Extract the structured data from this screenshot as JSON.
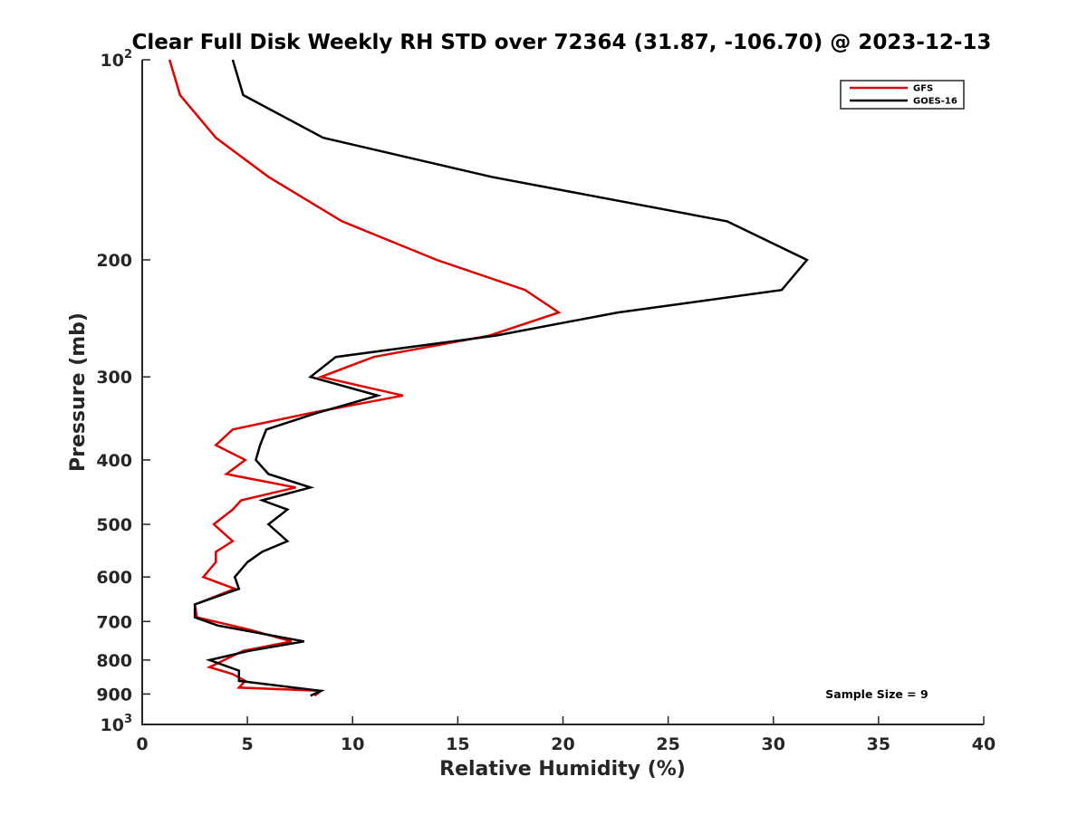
{
  "chart_data": {
    "type": "line",
    "title": "Clear Full Disk Weekly RH STD over 72364 (31.87, -106.70) @ 2023-12-13",
    "xlabel": "Relative Humidity (%)",
    "ylabel": "Pressure (mb)",
    "xlim": [
      0,
      40
    ],
    "ylim": [
      100,
      1000
    ],
    "y_scale": "log",
    "y_reversed": true,
    "x_ticks": [
      0,
      5,
      10,
      15,
      20,
      25,
      30,
      35,
      40
    ],
    "x_tick_labels": [
      "0",
      "5",
      "10",
      "15",
      "20",
      "25",
      "30",
      "35",
      "40"
    ],
    "y_ticks": [
      100,
      200,
      300,
      400,
      500,
      600,
      700,
      800,
      900,
      1000
    ],
    "y_tick_labels": [
      {
        "base": "10",
        "exp": "2"
      },
      {
        "base": "200",
        "exp": ""
      },
      {
        "base": "300",
        "exp": ""
      },
      {
        "base": "400",
        "exp": ""
      },
      {
        "base": "500",
        "exp": ""
      },
      {
        "base": "600",
        "exp": ""
      },
      {
        "base": "700",
        "exp": ""
      },
      {
        "base": "800",
        "exp": ""
      },
      {
        "base": "900",
        "exp": ""
      },
      {
        "base": "10",
        "exp": "3"
      }
    ],
    "grid": false,
    "legend_position": "top-right",
    "annotation": "Sample Size = 9",
    "series": [
      {
        "name": "GFS",
        "color": "#e00000",
        "points": [
          [
            1.3,
            100
          ],
          [
            1.8,
            113
          ],
          [
            3.5,
            131
          ],
          [
            6.0,
            150
          ],
          [
            9.5,
            175
          ],
          [
            14.0,
            200
          ],
          [
            18.2,
            222
          ],
          [
            19.8,
            240
          ],
          [
            16.5,
            260
          ],
          [
            11.0,
            280
          ],
          [
            8.5,
            300
          ],
          [
            12.4,
            320
          ],
          [
            8.0,
            340
          ],
          [
            4.3,
            360
          ],
          [
            3.5,
            380
          ],
          [
            4.9,
            400
          ],
          [
            4.0,
            420
          ],
          [
            7.3,
            440
          ],
          [
            4.7,
            460
          ],
          [
            4.3,
            475
          ],
          [
            3.4,
            500
          ],
          [
            4.3,
            530
          ],
          [
            3.5,
            550
          ],
          [
            3.5,
            570
          ],
          [
            2.9,
            600
          ],
          [
            4.4,
            625
          ],
          [
            2.5,
            660
          ],
          [
            2.6,
            690
          ],
          [
            5.1,
            720
          ],
          [
            7.1,
            750
          ],
          [
            4.8,
            775
          ],
          [
            3.9,
            800
          ],
          [
            3.2,
            820
          ],
          [
            4.3,
            840
          ],
          [
            4.9,
            860
          ],
          [
            4.6,
            880
          ],
          [
            8.5,
            890
          ],
          [
            8.2,
            905
          ]
        ]
      },
      {
        "name": "GOES-16",
        "color": "#000000",
        "points": [
          [
            4.3,
            100
          ],
          [
            4.8,
            113
          ],
          [
            8.6,
            131
          ],
          [
            16.6,
            150
          ],
          [
            27.8,
            175
          ],
          [
            31.6,
            200
          ],
          [
            30.4,
            222
          ],
          [
            22.6,
            240
          ],
          [
            16.8,
            260
          ],
          [
            9.2,
            280
          ],
          [
            8.0,
            300
          ],
          [
            11.2,
            320
          ],
          [
            8.3,
            340
          ],
          [
            5.9,
            360
          ],
          [
            5.6,
            380
          ],
          [
            5.4,
            400
          ],
          [
            6.0,
            420
          ],
          [
            8.0,
            440
          ],
          [
            5.7,
            460
          ],
          [
            6.9,
            475
          ],
          [
            6.0,
            500
          ],
          [
            6.9,
            530
          ],
          [
            5.7,
            550
          ],
          [
            5.0,
            570
          ],
          [
            4.4,
            600
          ],
          [
            4.6,
            625
          ],
          [
            2.5,
            660
          ],
          [
            2.5,
            690
          ],
          [
            3.6,
            710
          ],
          [
            7.7,
            750
          ],
          [
            5.1,
            775
          ],
          [
            3.2,
            800
          ],
          [
            4.6,
            830
          ],
          [
            4.6,
            860
          ],
          [
            8.5,
            890
          ],
          [
            8.0,
            905
          ]
        ]
      }
    ]
  }
}
